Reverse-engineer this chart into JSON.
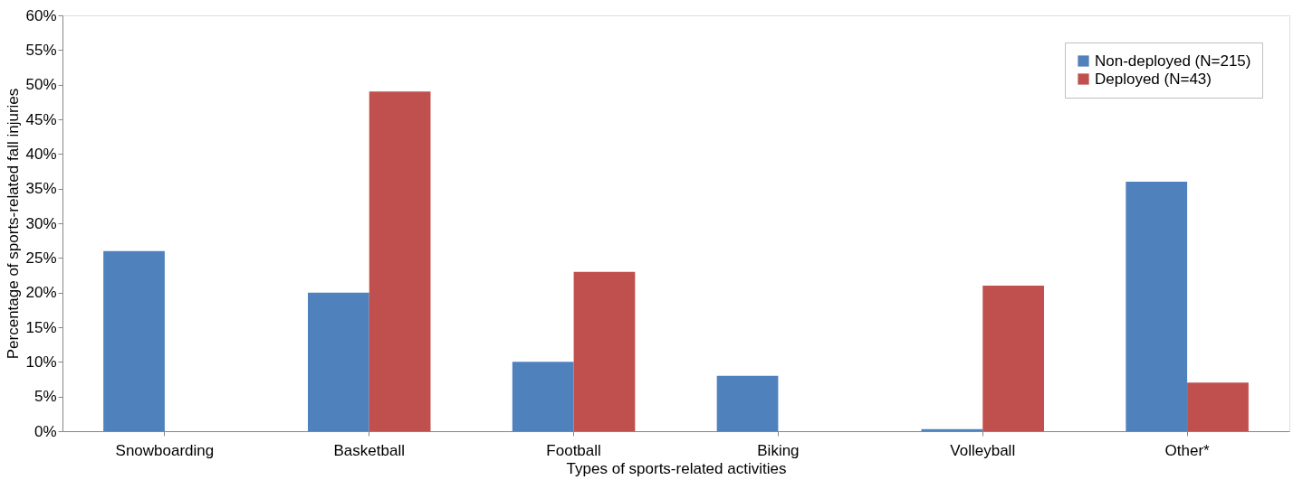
{
  "chart_data": {
    "type": "bar",
    "xlabel": "Types of sports-related activities",
    "ylabel": "Percentage of sports-related fall injuries",
    "categories": [
      "Snowboarding",
      "Basketball",
      "Football",
      "Biking",
      "Volleyball",
      "Other*"
    ],
    "series": [
      {
        "name": "Non-deployed (N=215)",
        "color": "#4f81bd",
        "values": [
          26,
          20,
          10,
          8,
          0.3,
          36
        ]
      },
      {
        "name": "Deployed (N=43)",
        "color": "#c0504d",
        "values": [
          0,
          49,
          23,
          0,
          21,
          7
        ]
      }
    ],
    "ylim": [
      0,
      60
    ],
    "yticks": [
      {
        "value": 0,
        "label": "0%"
      },
      {
        "value": 5,
        "label": "5%"
      },
      {
        "value": 10,
        "label": "10%"
      },
      {
        "value": 15,
        "label": "15%"
      },
      {
        "value": 20,
        "label": "20%"
      },
      {
        "value": 25,
        "label": "25%"
      },
      {
        "value": 30,
        "label": "30%"
      },
      {
        "value": 35,
        "label": "35%"
      },
      {
        "value": 40,
        "label": "40%"
      },
      {
        "value": 45,
        "label": "45%"
      },
      {
        "value": 50,
        "label": "50%"
      },
      {
        "value": 55,
        "label": "55%"
      },
      {
        "value": 60,
        "label": "60%"
      }
    ],
    "grid": false,
    "legend": "top right"
  }
}
